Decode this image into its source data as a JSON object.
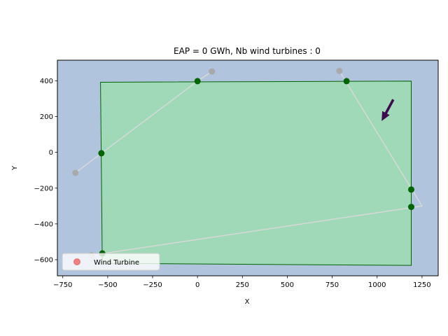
{
  "chart_data": {
    "type": "scatter",
    "title": "EAP = 0 GWh, Nb wind turbines : 0",
    "xlabel": "X",
    "ylabel": "Y",
    "xlim": [
      -780,
      1340
    ],
    "ylim": [
      -690,
      515
    ],
    "xticks": [
      -750,
      -500,
      -250,
      0,
      250,
      500,
      750,
      1000,
      1250
    ],
    "yticks": [
      -600,
      -400,
      -200,
      0,
      200,
      400
    ],
    "legend_position": "lower-left",
    "legend": [
      "Wind Turbine"
    ],
    "colors": {
      "axes_background": "#b0c4de",
      "polygon_fill": "#a0d9b7",
      "polygon_edge": "#006400",
      "boundary_point": "#006400",
      "connector_line": "#d8d8d8",
      "outer_point": "#a9a9a9",
      "arrow": "#3b0a4f",
      "wind_turbine": "#f08080"
    },
    "site_polygon": [
      {
        "x": -540,
        "y": 392
      },
      {
        "x": 1190,
        "y": 398
      },
      {
        "x": 1190,
        "y": -632
      },
      {
        "x": -530,
        "y": -620
      }
    ],
    "connector_polylines": [
      [
        {
          "x": -680,
          "y": -115
        },
        {
          "x": 0,
          "y": 398
        },
        {
          "x": 80,
          "y": 452
        }
      ],
      [
        {
          "x": 790,
          "y": 455
        },
        {
          "x": 1250,
          "y": -300
        },
        {
          "x": -590,
          "y": -575
        }
      ]
    ],
    "outer_points": [
      {
        "x": -680,
        "y": -115
      },
      {
        "x": 80,
        "y": 452
      },
      {
        "x": 790,
        "y": 455
      },
      {
        "x": -590,
        "y": -575
      }
    ],
    "boundary_points": [
      {
        "x": 0,
        "y": 398
      },
      {
        "x": -535,
        "y": -5
      },
      {
        "x": 830,
        "y": 398
      },
      {
        "x": 1190,
        "y": -208
      },
      {
        "x": 1190,
        "y": -305
      },
      {
        "x": -530,
        "y": -565
      }
    ],
    "wind_direction_arrow": {
      "from": {
        "x": 1090,
        "y": 295
      },
      "to": {
        "x": 1025,
        "y": 175
      }
    },
    "wind_turbines": []
  }
}
